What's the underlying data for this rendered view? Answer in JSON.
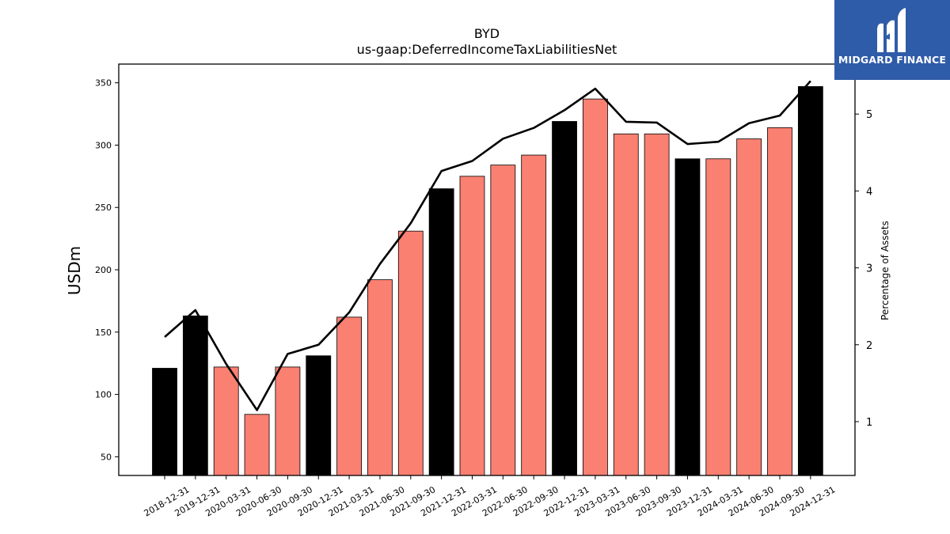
{
  "chart_data": {
    "type": "bar",
    "title": "BYD",
    "subtitle": "us-gaap:DeferredIncomeTaxLiabilitiesNet",
    "ylabel": "USDm",
    "y2label": "Percentage of Assets",
    "ylim": [
      35,
      365
    ],
    "y2lim": [
      0.3,
      5.65
    ],
    "yticks": [
      50,
      100,
      150,
      200,
      250,
      300,
      350
    ],
    "y2ticks": [
      1,
      2,
      3,
      4,
      5
    ],
    "categories": [
      "2018-12-31",
      "2019-12-31",
      "2020-03-31",
      "2020-06-30",
      "2020-09-30",
      "2020-12-31",
      "2021-03-31",
      "2021-06-30",
      "2021-09-30",
      "2021-12-31",
      "2022-03-31",
      "2022-06-30",
      "2022-09-30",
      "2022-12-31",
      "2023-03-31",
      "2023-06-30",
      "2023-09-30",
      "2023-12-31",
      "2024-03-31",
      "2024-06-30",
      "2024-09-30",
      "2024-12-31"
    ],
    "series": [
      {
        "axis": "left",
        "kind": "bar",
        "values": [
          121,
          163,
          122,
          84,
          122,
          131,
          162,
          192,
          231,
          265,
          275,
          284,
          292,
          319,
          337,
          309,
          309,
          289,
          289,
          305,
          314,
          347
        ],
        "annual_flags": [
          true,
          true,
          false,
          false,
          false,
          true,
          false,
          false,
          false,
          true,
          false,
          false,
          false,
          true,
          false,
          false,
          false,
          true,
          false,
          false,
          false,
          true
        ]
      },
      {
        "axis": "right",
        "kind": "line",
        "values": [
          2.1,
          2.45,
          1.75,
          1.15,
          1.88,
          2.0,
          2.42,
          3.05,
          3.58,
          4.26,
          4.39,
          4.68,
          4.82,
          5.05,
          5.33,
          4.9,
          4.89,
          4.61,
          4.64,
          4.88,
          4.98,
          5.43
        ]
      }
    ],
    "colors": {
      "annual": "#000000",
      "quarterly": "#fa8072",
      "line": "#000000"
    },
    "grid": false,
    "legend": "none"
  },
  "logo": {
    "text": "MIDGARD FINANCE",
    "icon": "midgard-logo-icon"
  }
}
